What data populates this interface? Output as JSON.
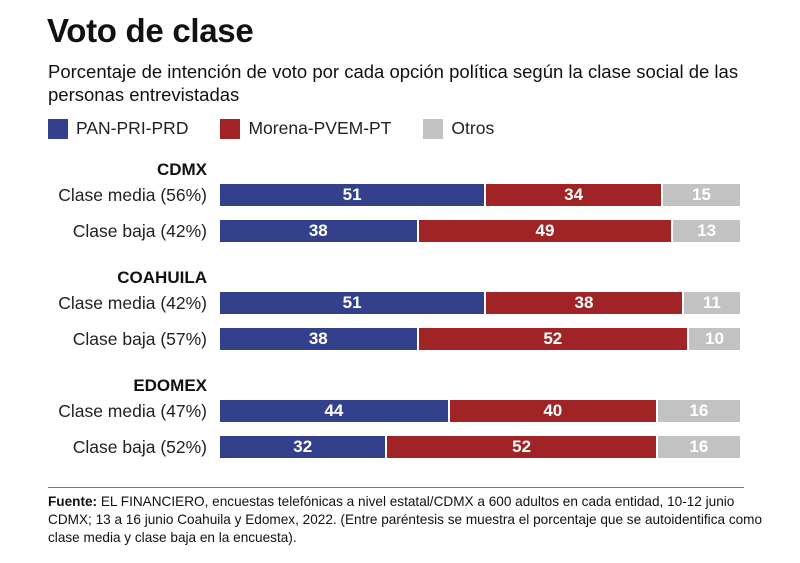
{
  "header": {
    "title": "Voto de clase",
    "subtitle": "Porcentaje de intención de voto por cada opción política según la clase social de las personas entrevistadas"
  },
  "legend": [
    {
      "label": "PAN-PRI-PRD",
      "color": "#33408c"
    },
    {
      "label": "Morena-PVEM-PT",
      "color": "#a02326"
    },
    {
      "label": "Otros",
      "color": "#c2c2c2"
    }
  ],
  "chart_data": {
    "type": "bar",
    "orientation": "horizontal",
    "stacked": true,
    "title": "Voto de clase",
    "subtitle": "Porcentaje de intención de voto por cada opción política según la clase social de las personas entrevistadas",
    "xlim": [
      0,
      100
    ],
    "series_names": [
      "PAN-PRI-PRD",
      "Morena-PVEM-PT",
      "Otros"
    ],
    "colors": [
      "#33408c",
      "#a02326",
      "#c2c2c2"
    ],
    "groups": [
      {
        "name": "CDMX",
        "rows": [
          {
            "label": "Clase media (56%)",
            "values": [
              51,
              34,
              15
            ]
          },
          {
            "label": "Clase baja (42%)",
            "values": [
              38,
              49,
              13
            ]
          }
        ]
      },
      {
        "name": "COAHUILA",
        "rows": [
          {
            "label": "Clase media (42%)",
            "values": [
              51,
              38,
              11
            ]
          },
          {
            "label": "Clase baja (57%)",
            "values": [
              38,
              52,
              10
            ]
          }
        ]
      },
      {
        "name": "EDOMEX",
        "rows": [
          {
            "label": "Clase media (47%)",
            "values": [
              44,
              40,
              16
            ]
          },
          {
            "label": "Clase baja (52%)",
            "values": [
              32,
              52,
              16
            ]
          }
        ]
      }
    ]
  },
  "source": {
    "label": "Fuente:",
    "text": " EL FINANCIERO, encuestas telefónicas a nivel estatal/CDMX a 600 adultos en cada entidad, 10-12 junio CDMX; 13 a 16 junio Coahuila y Edomex, 2022. (Entre paréntesis se muestra el porcentaje que se autoidentifica como clase media y clase baja en la encuesta)."
  }
}
